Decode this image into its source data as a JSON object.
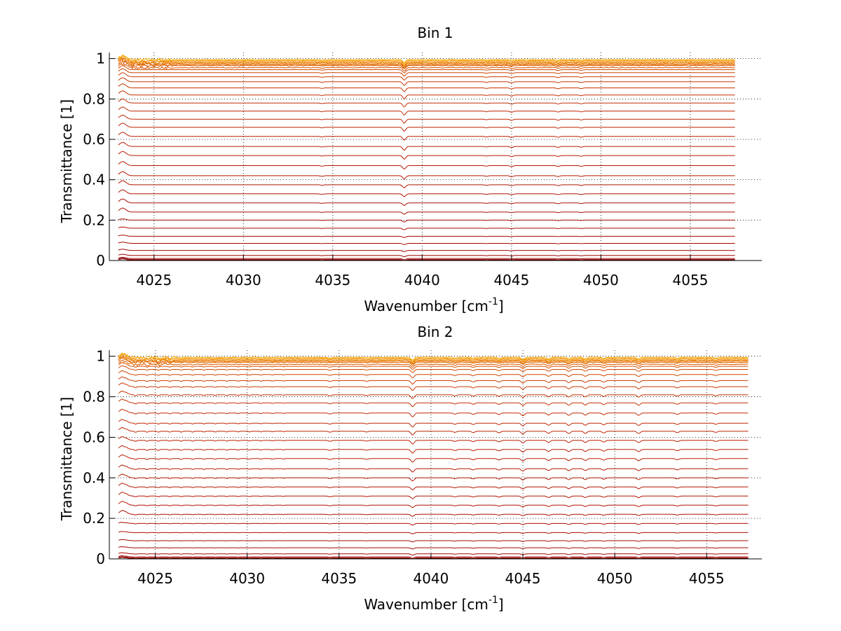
{
  "figure": {
    "background": "#ffffff"
  },
  "chart_data": [
    {
      "type": "line",
      "title": "Bin 1",
      "xlabel": "Wavenumber [cm",
      "xlabel_sup": "-1",
      "xlabel_tail": "]",
      "ylabel": "Transmittance [1]",
      "xlim": [
        4022.5,
        4059
      ],
      "ylim": [
        0,
        1.03
      ],
      "xticks": [
        4025,
        4030,
        4035,
        4040,
        4045,
        4050,
        4055
      ],
      "yticks": [
        0,
        0.2,
        0.4,
        0.6,
        0.8,
        1
      ],
      "ytick_labels": [
        "0",
        "0.2",
        "0.4",
        "0.6",
        "0.8",
        "1"
      ],
      "grid": true,
      "x_start": 4023,
      "x_end": 4057.5,
      "baselines": [
        0.995,
        0.99,
        0.985,
        0.98,
        0.975,
        0.97,
        0.965,
        0.955,
        0.945,
        0.93,
        0.91,
        0.885,
        0.855,
        0.82,
        0.78,
        0.74,
        0.7,
        0.66,
        0.615,
        0.565,
        0.52,
        0.47,
        0.42,
        0.375,
        0.33,
        0.285,
        0.24,
        0.2,
        0.16,
        0.12,
        0.085,
        0.05,
        0.025,
        0.01,
        0.005,
        0.002
      ],
      "series_colors": [
        "#f5a800",
        "#f59a00",
        "#f08c00",
        "#ea8000",
        "#e67400",
        "#e06800",
        "#da5c00",
        "#d65200",
        "#d24a00",
        "#ce4200",
        "#cc3c00",
        "#ca3600",
        "#c83200",
        "#c62e00",
        "#c42a00",
        "#c22600",
        "#c02200",
        "#be2000",
        "#bc1e00",
        "#ba1c00",
        "#b81a00",
        "#b61800",
        "#b41600",
        "#b21400",
        "#b01200",
        "#ae1000",
        "#ac0e00",
        "#aa0c00",
        "#a80a00",
        "#a60800",
        "#a40600",
        "#a20400",
        "#a00200",
        "#9e0000",
        "#900000",
        "#800000"
      ],
      "absorption_lines": [
        {
          "x": 4039,
          "depth": 1.0
        },
        {
          "x": 4045,
          "depth": 0.3
        },
        {
          "x": 4047.6,
          "depth": 0.25
        },
        {
          "x": 4048.9,
          "depth": 0.2
        },
        {
          "x": 4034.4,
          "depth": 0.15
        },
        {
          "x": 4043.6,
          "depth": 0.15
        }
      ],
      "line_width_cm": 0.12,
      "edge_bump": 1
    },
    {
      "type": "line",
      "title": "Bin 2",
      "xlabel": "Wavenumber [cm",
      "xlabel_sup": "-1",
      "xlabel_tail": "]",
      "ylabel": "Transmittance [1]",
      "xlim": [
        4022.5,
        4058
      ],
      "ylim": [
        0,
        1.03
      ],
      "xticks": [
        4025,
        4030,
        4035,
        4040,
        4045,
        4050,
        4055
      ],
      "yticks": [
        0,
        0.2,
        0.4,
        0.6,
        0.8,
        1
      ],
      "ytick_labels": [
        "0",
        "0.2",
        "0.4",
        "0.6",
        "0.8",
        "1"
      ],
      "grid": true,
      "x_start": 4023,
      "x_end": 4057.3,
      "baselines": [
        0.995,
        0.99,
        0.985,
        0.98,
        0.975,
        0.97,
        0.96,
        0.95,
        0.935,
        0.91,
        0.88,
        0.85,
        0.81,
        0.77,
        0.72,
        0.67,
        0.63,
        0.585,
        0.54,
        0.495,
        0.445,
        0.4,
        0.355,
        0.31,
        0.265,
        0.22,
        0.175,
        0.13,
        0.09,
        0.055,
        0.025,
        0.01,
        0.005,
        0.002
      ],
      "series_colors": [
        "#f5a800",
        "#f59a00",
        "#f08c00",
        "#ea8000",
        "#e67400",
        "#e06800",
        "#da5c00",
        "#d65200",
        "#d24a00",
        "#ce4200",
        "#cc3c00",
        "#ca3600",
        "#c83200",
        "#c62e00",
        "#c42a00",
        "#c22600",
        "#c02200",
        "#be2000",
        "#bc1e00",
        "#ba1c00",
        "#b81a00",
        "#b61800",
        "#b41600",
        "#b21400",
        "#b01200",
        "#ae1000",
        "#ac0e00",
        "#aa0c00",
        "#a80a00",
        "#a60800",
        "#a40600",
        "#a00200",
        "#900000",
        "#800000"
      ],
      "absorption_lines": [
        {
          "x": 4039,
          "depth": 1.0
        },
        {
          "x": 4045,
          "depth": 0.7
        },
        {
          "x": 4046.4,
          "depth": 0.55
        },
        {
          "x": 4047.5,
          "depth": 0.6
        },
        {
          "x": 4048.4,
          "depth": 0.55
        },
        {
          "x": 4049.4,
          "depth": 0.45
        },
        {
          "x": 4051.3,
          "depth": 0.6
        },
        {
          "x": 4043.7,
          "depth": 0.4
        },
        {
          "x": 4042.3,
          "depth": 0.35
        },
        {
          "x": 4041.3,
          "depth": 0.3
        },
        {
          "x": 4034.5,
          "depth": 0.25
        },
        {
          "x": 4036.5,
          "depth": 0.2
        },
        {
          "x": 4053.4,
          "depth": 0.35
        },
        {
          "x": 4055.5,
          "depth": 0.3
        }
      ],
      "periodic_ripple": {
        "start": 4023,
        "end": 4032,
        "period": 0.62,
        "depth": 0.35
      },
      "line_width_cm": 0.12,
      "edge_bump": 1
    }
  ]
}
